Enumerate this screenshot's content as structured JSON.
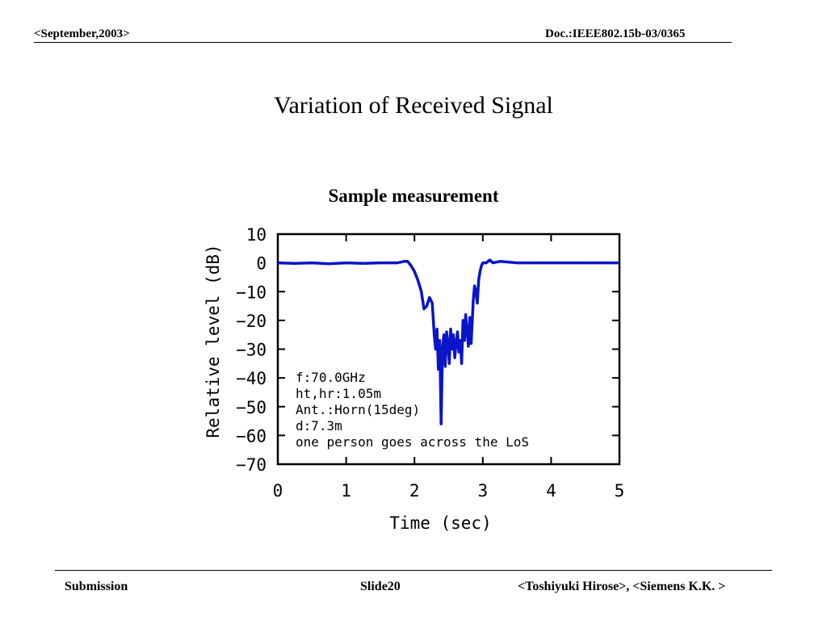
{
  "header": {
    "left": "<September,2003>",
    "right": "Doc.:IEEE802.15b-03/0365"
  },
  "slide": {
    "title": "Variation of Received Signal",
    "subtitle": "Sample measurement"
  },
  "footer": {
    "left": "Submission",
    "center": "Slide20",
    "right": "<Toshiyuki Hirose>, <Siemens K.K. >"
  },
  "chart_data": {
    "type": "line",
    "xlabel": "Time (sec)",
    "ylabel": "Relative level (dB)",
    "xlim": [
      0,
      5
    ],
    "ylim": [
      -70,
      10
    ],
    "xticks": [
      "0",
      "1",
      "2",
      "3",
      "4",
      "5"
    ],
    "yticks": [
      "10",
      "0",
      "-10",
      "-20",
      "-30",
      "-40",
      "-50",
      "-60",
      "-70"
    ],
    "grid": false,
    "line_color": "#0a14c8",
    "annotation": [
      "f:70.0GHz",
      "ht,hr:1.05m",
      "Ant.:Horn(15deg)",
      "d:7.3m",
      "one person goes across the LoS"
    ],
    "series": [
      {
        "x": [
          0.0,
          0.25,
          0.5,
          0.75,
          1.0,
          1.25,
          1.5,
          1.75,
          1.85,
          1.9,
          1.95,
          2.0,
          2.05,
          2.1,
          2.14,
          2.18,
          2.22,
          2.26,
          2.29,
          2.31,
          2.33,
          2.35,
          2.37,
          2.39,
          2.41,
          2.43,
          2.45,
          2.47,
          2.49,
          2.51,
          2.53,
          2.55,
          2.57,
          2.59,
          2.61,
          2.63,
          2.65,
          2.67,
          2.69,
          2.71,
          2.73,
          2.75,
          2.77,
          2.79,
          2.81,
          2.83,
          2.86,
          2.88,
          2.9,
          2.92,
          2.94,
          2.96,
          2.98,
          3.0,
          3.05,
          3.1,
          3.15,
          3.25,
          3.5,
          4.0,
          4.5,
          5.0
        ],
        "y": [
          0.0,
          -0.2,
          0.0,
          -0.3,
          0.0,
          -0.2,
          0.0,
          0.0,
          0.5,
          0.5,
          -1.0,
          -3.0,
          -6.0,
          -10.0,
          -16.0,
          -15.0,
          -12.0,
          -14.0,
          -25.0,
          -30.0,
          -23.0,
          -37.0,
          -27.0,
          -56.0,
          -30.0,
          -25.0,
          -36.0,
          -24.0,
          -28.0,
          -35.0,
          -23.0,
          -30.0,
          -25.0,
          -33.0,
          -28.0,
          -24.0,
          -31.0,
          -27.0,
          -35.0,
          -20.0,
          -27.0,
          -18.0,
          -24.0,
          -29.0,
          -19.0,
          -28.0,
          -13.0,
          -8.0,
          -10.0,
          -14.0,
          -6.0,
          -3.0,
          -1.0,
          0.0,
          0.0,
          1.0,
          0.0,
          0.5,
          0.0,
          0.0,
          0.0,
          0.0
        ]
      }
    ]
  }
}
